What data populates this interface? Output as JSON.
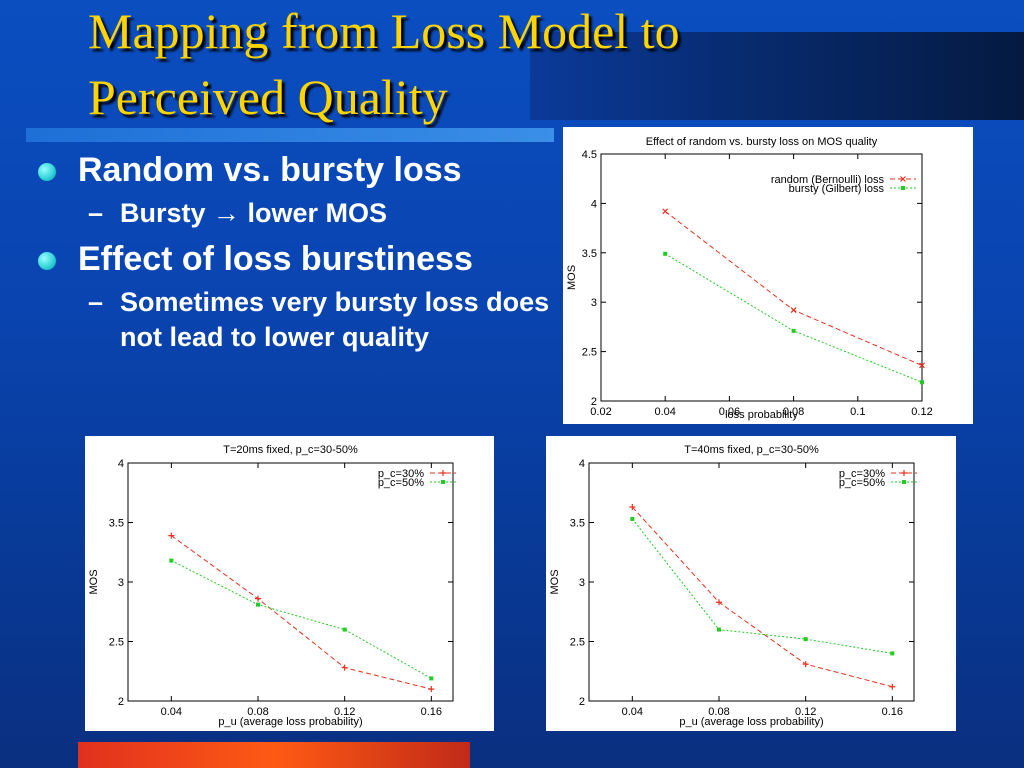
{
  "slide": {
    "title": "Mapping from Loss Model to Perceived Quality",
    "bullets": [
      {
        "text": "Random vs. bursty loss",
        "sub": [
          "Bursty → lower MOS"
        ]
      },
      {
        "text": "Effect of loss burstiness",
        "sub": [
          "Sometimes very bursty loss does not lead to lower quality"
        ]
      }
    ]
  },
  "colors": {
    "title": "#ffd400",
    "series_red": "#e8321e",
    "series_green": "#22cc22"
  },
  "chart_data": [
    {
      "type": "line",
      "title": "Effect of random vs. bursty loss on MOS quality",
      "xlabel": "loss probability",
      "ylabel": "MOS",
      "xlim": [
        0.02,
        0.12
      ],
      "ylim": [
        2,
        4.5
      ],
      "xticks": [
        0.02,
        0.04,
        0.06,
        0.08,
        0.1,
        0.12
      ],
      "xtick_labels": [
        "0.02",
        "0.04",
        "0.06",
        "0.08",
        "0.1",
        "0.12"
      ],
      "yticks": [
        2,
        2.5,
        3,
        3.5,
        4,
        4.5
      ],
      "ytick_labels": [
        "2",
        "2.5",
        "3",
        "3.5",
        "4",
        "4.5"
      ],
      "grid": false,
      "legend": "top-right",
      "x": [
        0.04,
        0.08,
        0.12
      ],
      "series": [
        {
          "name": "random (Bernoulli) loss",
          "values": [
            3.92,
            2.92,
            2.36
          ],
          "marker": "x",
          "color": "#e8321e"
        },
        {
          "name": "bursty (Gilbert) loss",
          "values": [
            3.49,
            2.71,
            2.19
          ],
          "marker": "square",
          "color": "#22cc22"
        }
      ]
    },
    {
      "type": "line",
      "title": "T=20ms fixed, p_c=30-50%",
      "xlabel": "p_u (average loss probability)",
      "ylabel": "MOS",
      "xlim": [
        0.02,
        0.17
      ],
      "ylim": [
        2,
        4
      ],
      "xticks": [
        0.04,
        0.08,
        0.12,
        0.16
      ],
      "xtick_labels": [
        "0.04",
        "0.08",
        "0.12",
        "0.16"
      ],
      "yticks": [
        2,
        2.5,
        3,
        3.5,
        4
      ],
      "ytick_labels": [
        "2",
        "2.5",
        "3",
        "3.5",
        "4"
      ],
      "grid": false,
      "legend": "top-right",
      "x": [
        0.04,
        0.08,
        0.12,
        0.16
      ],
      "series": [
        {
          "name": "p_c=30%",
          "values": [
            3.39,
            2.86,
            2.28,
            2.1
          ],
          "marker": "plus",
          "color": "#e8321e"
        },
        {
          "name": "p_c=50%",
          "values": [
            3.18,
            2.81,
            2.6,
            2.19
          ],
          "marker": "square",
          "color": "#22cc22"
        }
      ]
    },
    {
      "type": "line",
      "title": "T=40ms fixed, p_c=30-50%",
      "xlabel": "p_u (average loss probability)",
      "ylabel": "MOS",
      "xlim": [
        0.02,
        0.17
      ],
      "ylim": [
        2,
        4
      ],
      "xticks": [
        0.04,
        0.08,
        0.12,
        0.16
      ],
      "xtick_labels": [
        "0.04",
        "0.08",
        "0.12",
        "0.16"
      ],
      "yticks": [
        2,
        2.5,
        3,
        3.5,
        4
      ],
      "ytick_labels": [
        "2",
        "2.5",
        "3",
        "3.5",
        "4"
      ],
      "grid": false,
      "legend": "top-right",
      "x": [
        0.04,
        0.08,
        0.12,
        0.16
      ],
      "series": [
        {
          "name": "p_c=30%",
          "values": [
            3.63,
            2.83,
            2.31,
            2.12
          ],
          "marker": "plus",
          "color": "#e8321e"
        },
        {
          "name": "p_c=50%",
          "values": [
            3.53,
            2.6,
            2.52,
            2.4
          ],
          "marker": "square",
          "color": "#22cc22"
        }
      ]
    }
  ]
}
